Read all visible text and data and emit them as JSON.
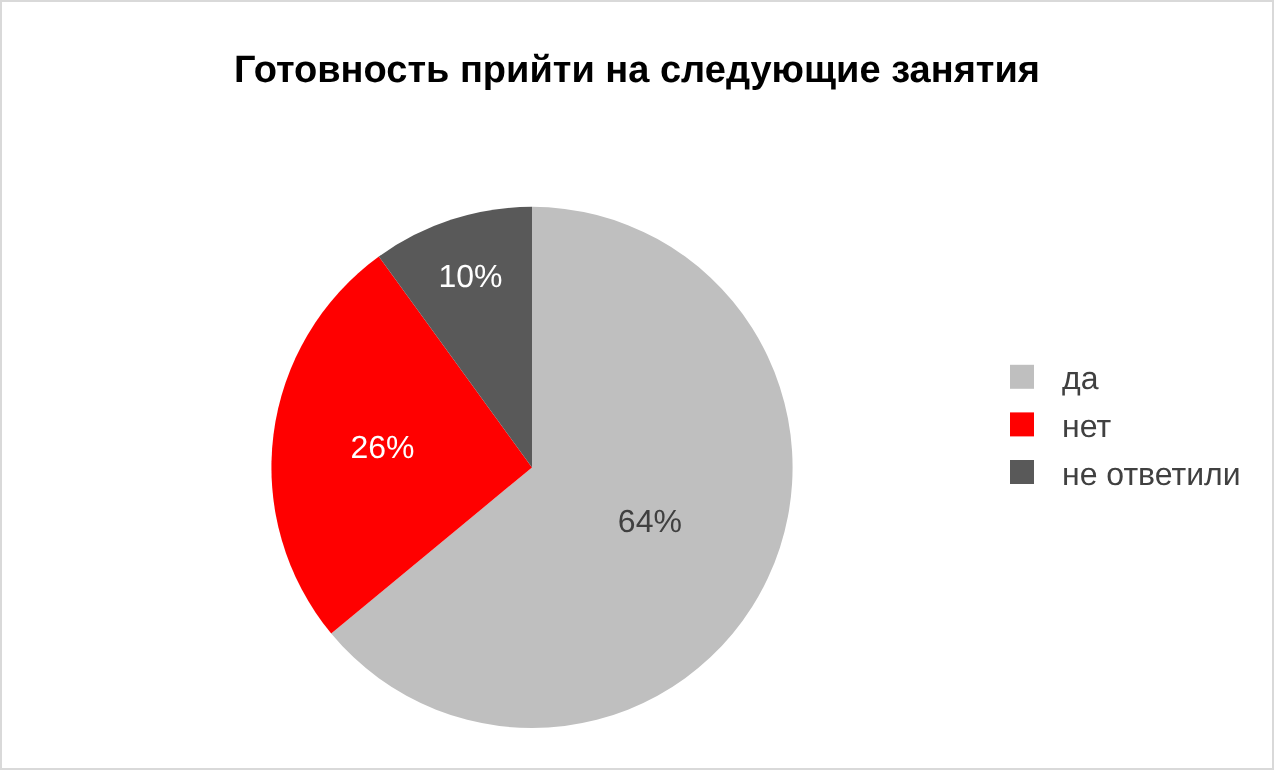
{
  "chart_data": {
    "type": "pie",
    "title": "Готовность прийти на следующие занятия",
    "categories": [
      "да",
      "нет",
      "не ответили"
    ],
    "values": [
      64,
      26,
      10
    ],
    "colors": [
      "#bfbfbf",
      "#ff0000",
      "#595959"
    ],
    "value_labels": [
      "64%",
      "26%",
      "10%"
    ],
    "legend": "right"
  }
}
